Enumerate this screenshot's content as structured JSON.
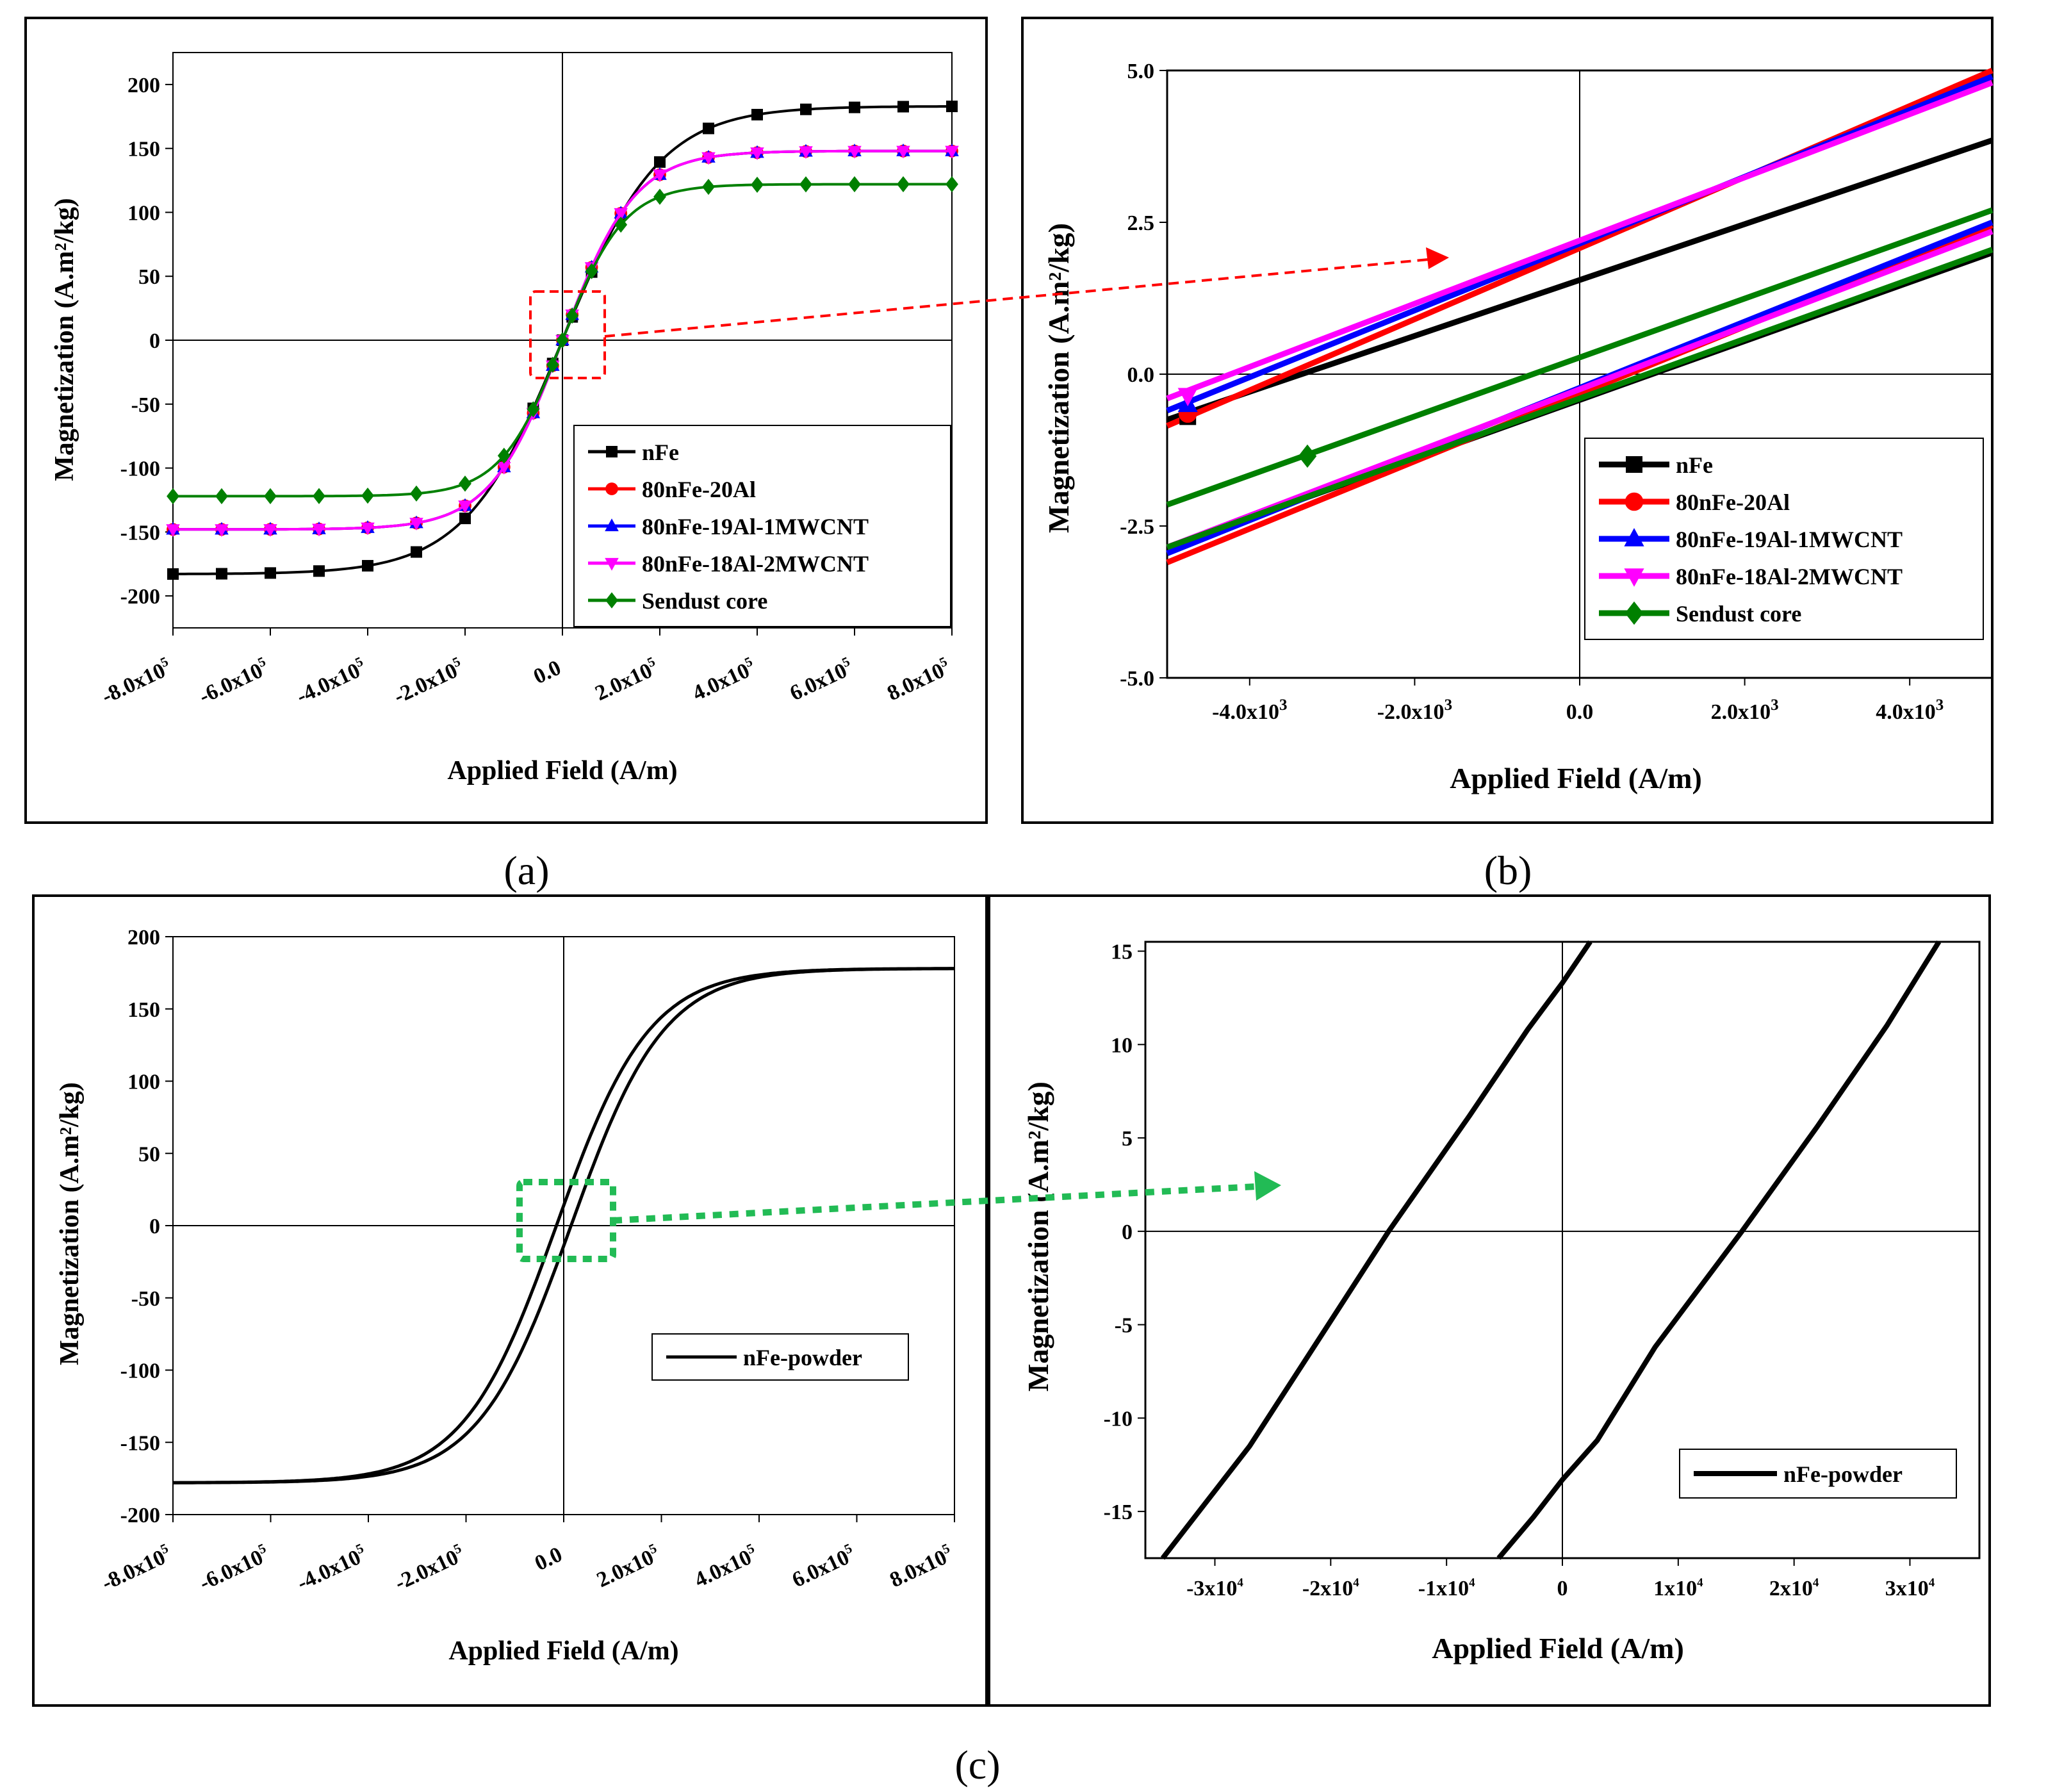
{
  "figure": {
    "captions": [
      "(a)",
      "(b)",
      "(c)"
    ]
  },
  "colors": {
    "nFe": "#000000",
    "80nFe-20Al": "#ff0000",
    "80nFe-19Al-1MWCNT": "#0000ff",
    "80nFe-18Al-2MWCNT": "#ff00ff",
    "Sendust core": "#008000",
    "zoom_arrow_a": "#ff0000",
    "zoom_arrow_c": "#22bb55"
  },
  "chart_data": [
    {
      "id": "a",
      "type": "line",
      "title": "",
      "xlabel": "Applied Field (A/m)",
      "ylabel": "Magnetization (A.m²/kg)",
      "xlim": [
        -800000,
        800000
      ],
      "ylim": [
        -225,
        225
      ],
      "xticks": [
        -800000,
        -600000,
        -400000,
        -200000,
        0,
        200000,
        400000,
        600000,
        800000
      ],
      "xtick_mantissa": [
        "-8.0x10",
        "-6.0x10",
        "-4.0x10",
        "-2.0x10",
        "0.0",
        "2.0x10",
        "4.0x10",
        "6.0x10",
        "8.0x10"
      ],
      "xtick_exponent": [
        "5",
        "5",
        "5",
        "5",
        "",
        "5",
        "5",
        "5",
        "5"
      ],
      "yticks": [
        -200,
        -150,
        -100,
        -50,
        0,
        50,
        100,
        150,
        200
      ],
      "ytick_labels": [
        "-200",
        "-150",
        "-100",
        "-50",
        "0",
        "50",
        "100",
        "150",
        "200"
      ],
      "legend_position": "bottom-right",
      "series": [
        {
          "name": "nFe",
          "marker": "square",
          "Ms": 183,
          "H0": 230000
        },
        {
          "name": "80nFe-20Al",
          "marker": "circle",
          "Ms": 148,
          "H0": 170000
        },
        {
          "name": "80nFe-19Al-1MWCNT",
          "marker": "triangle-up",
          "Ms": 148,
          "H0": 170000
        },
        {
          "name": "80nFe-18Al-2MWCNT",
          "marker": "triangle-down",
          "Ms": 148,
          "H0": 170000
        },
        {
          "name": "Sendust core",
          "marker": "diamond",
          "Ms": 122,
          "H0": 145000
        }
      ],
      "marker_x": [
        -800000,
        -700000,
        -600000,
        -500000,
        -400000,
        -300000,
        -200000,
        -120000,
        -60000,
        -20000,
        0,
        20000,
        60000,
        120000,
        200000,
        300000,
        400000,
        500000,
        600000,
        700000,
        800000
      ]
    },
    {
      "id": "b",
      "type": "line",
      "title": "",
      "xlabel": "Applied Field (A/m)",
      "ylabel": "Magnetization (A.m²/kg)",
      "xlim": [
        -5000,
        5000
      ],
      "ylim": [
        -5,
        5
      ],
      "xticks": [
        -4000,
        -2000,
        0,
        2000,
        4000
      ],
      "xtick_mantissa": [
        "-4.0x10",
        "-2.0x10",
        "0.0",
        "2.0x10",
        "4.0x10"
      ],
      "xtick_exponent": [
        "3",
        "3",
        "",
        "3",
        "3"
      ],
      "yticks": [
        -5,
        -2.5,
        0,
        2.5,
        5
      ],
      "ytick_labels": [
        "-5.0",
        "-2.5",
        "0.0",
        "2.5",
        "5.0"
      ],
      "legend_position": "bottom-right",
      "series": [
        {
          "name": "nFe",
          "marker": "square",
          "upper": [
            [
              -5000,
              -0.75
            ],
            [
              5000,
              3.85
            ]
          ],
          "lower": [
            [
              -5000,
              -2.85
            ],
            [
              5000,
              2.0
            ]
          ]
        },
        {
          "name": "80nFe-20Al",
          "marker": "circle",
          "upper": [
            [
              -5000,
              -0.85
            ],
            [
              5000,
              5.0
            ]
          ],
          "lower": [
            [
              -5000,
              -3.1
            ],
            [
              5000,
              2.45
            ]
          ]
        },
        {
          "name": "80nFe-19Al-1MWCNT",
          "marker": "triangle-up",
          "upper": [
            [
              -5000,
              -0.6
            ],
            [
              5000,
              4.9
            ]
          ],
          "lower": [
            [
              -5000,
              -2.95
            ],
            [
              5000,
              2.5
            ]
          ]
        },
        {
          "name": "80nFe-18Al-2MWCNT",
          "marker": "triangle-down",
          "upper": [
            [
              -5000,
              -0.4
            ],
            [
              5000,
              4.8
            ]
          ],
          "lower": [
            [
              -5000,
              -2.85
            ],
            [
              5000,
              2.35
            ]
          ]
        },
        {
          "name": "Sendust core",
          "marker": "diamond",
          "upper": [
            [
              -5000,
              -2.15
            ],
            [
              5000,
              2.7
            ]
          ],
          "lower": [
            [
              -5000,
              -2.85
            ],
            [
              5000,
              2.05
            ]
          ]
        }
      ],
      "markers": [
        [
          -4750,
          -0.7
        ],
        [
          -4750,
          -0.65
        ],
        [
          -4750,
          -0.5
        ],
        [
          -4750,
          -0.35
        ],
        [
          -3300,
          -1.35
        ]
      ]
    },
    {
      "id": "c-left",
      "type": "line",
      "title": "",
      "xlabel": "Applied Field (A/m)",
      "ylabel": "Magnetization (A.m²/kg)",
      "xlim": [
        -800000,
        800000
      ],
      "ylim": [
        -200,
        200
      ],
      "xticks": [
        -800000,
        -600000,
        -400000,
        -200000,
        0,
        200000,
        400000,
        600000,
        800000
      ],
      "xtick_mantissa": [
        "-8.0x10",
        "-6.0x10",
        "-4.0x10",
        "-2.0x10",
        "0.0",
        "2.0x10",
        "4.0x10",
        "6.0x10",
        "8.0x10"
      ],
      "xtick_exponent": [
        "5",
        "5",
        "5",
        "5",
        "",
        "5",
        "5",
        "5",
        "5"
      ],
      "yticks": [
        -200,
        -150,
        -100,
        -50,
        0,
        50,
        100,
        150,
        200
      ],
      "ytick_labels": [
        "-200",
        "-150",
        "-100",
        "-50",
        "0",
        "50",
        "100",
        "150",
        "200"
      ],
      "legend_position": "center-right",
      "series": [
        {
          "name": "nFe-powder",
          "Ms": 178,
          "Hc": 15000,
          "H0": 200000
        }
      ]
    },
    {
      "id": "c-right",
      "type": "line",
      "title": "",
      "xlabel": "Applied Field (A/m)",
      "ylabel": "Magnetization (A.m²/kg)",
      "xlim": [
        -36000,
        36000
      ],
      "ylim": [
        -17.5,
        15.5
      ],
      "xticks": [
        -30000,
        -20000,
        -10000,
        0,
        10000,
        20000,
        30000
      ],
      "xtick_mantissa": [
        "-3x10",
        "-2x10",
        "-1x10",
        "0",
        "1x10",
        "2x10",
        "3x10"
      ],
      "xtick_exponent": [
        "4",
        "4",
        "4",
        "",
        "4",
        "4",
        "4"
      ],
      "yticks": [
        -15,
        -10,
        -5,
        0,
        5,
        10,
        15
      ],
      "ytick_labels": [
        "-15",
        "-10",
        "-5",
        "0",
        "5",
        "10",
        "15"
      ],
      "legend_position": "bottom-right",
      "series": [
        {
          "name": "nFe-powder",
          "upper": [
            [
              -34500,
              -17.5
            ],
            [
              -27000,
              -11.5
            ],
            [
              -20000,
              -4.8
            ],
            [
              -15000,
              0.0
            ],
            [
              -8000,
              6.2
            ],
            [
              -3000,
              10.8
            ],
            [
              0,
              13.3
            ],
            [
              2400,
              15.5
            ]
          ],
          "lower": [
            [
              -5500,
              -17.5
            ],
            [
              -2500,
              -15.3
            ],
            [
              0,
              -13.3
            ],
            [
              3000,
              -11.2
            ],
            [
              8000,
              -6.2
            ],
            [
              15500,
              0.0
            ],
            [
              22000,
              5.6
            ],
            [
              28000,
              11.0
            ],
            [
              32500,
              15.5
            ]
          ]
        }
      ]
    }
  ]
}
